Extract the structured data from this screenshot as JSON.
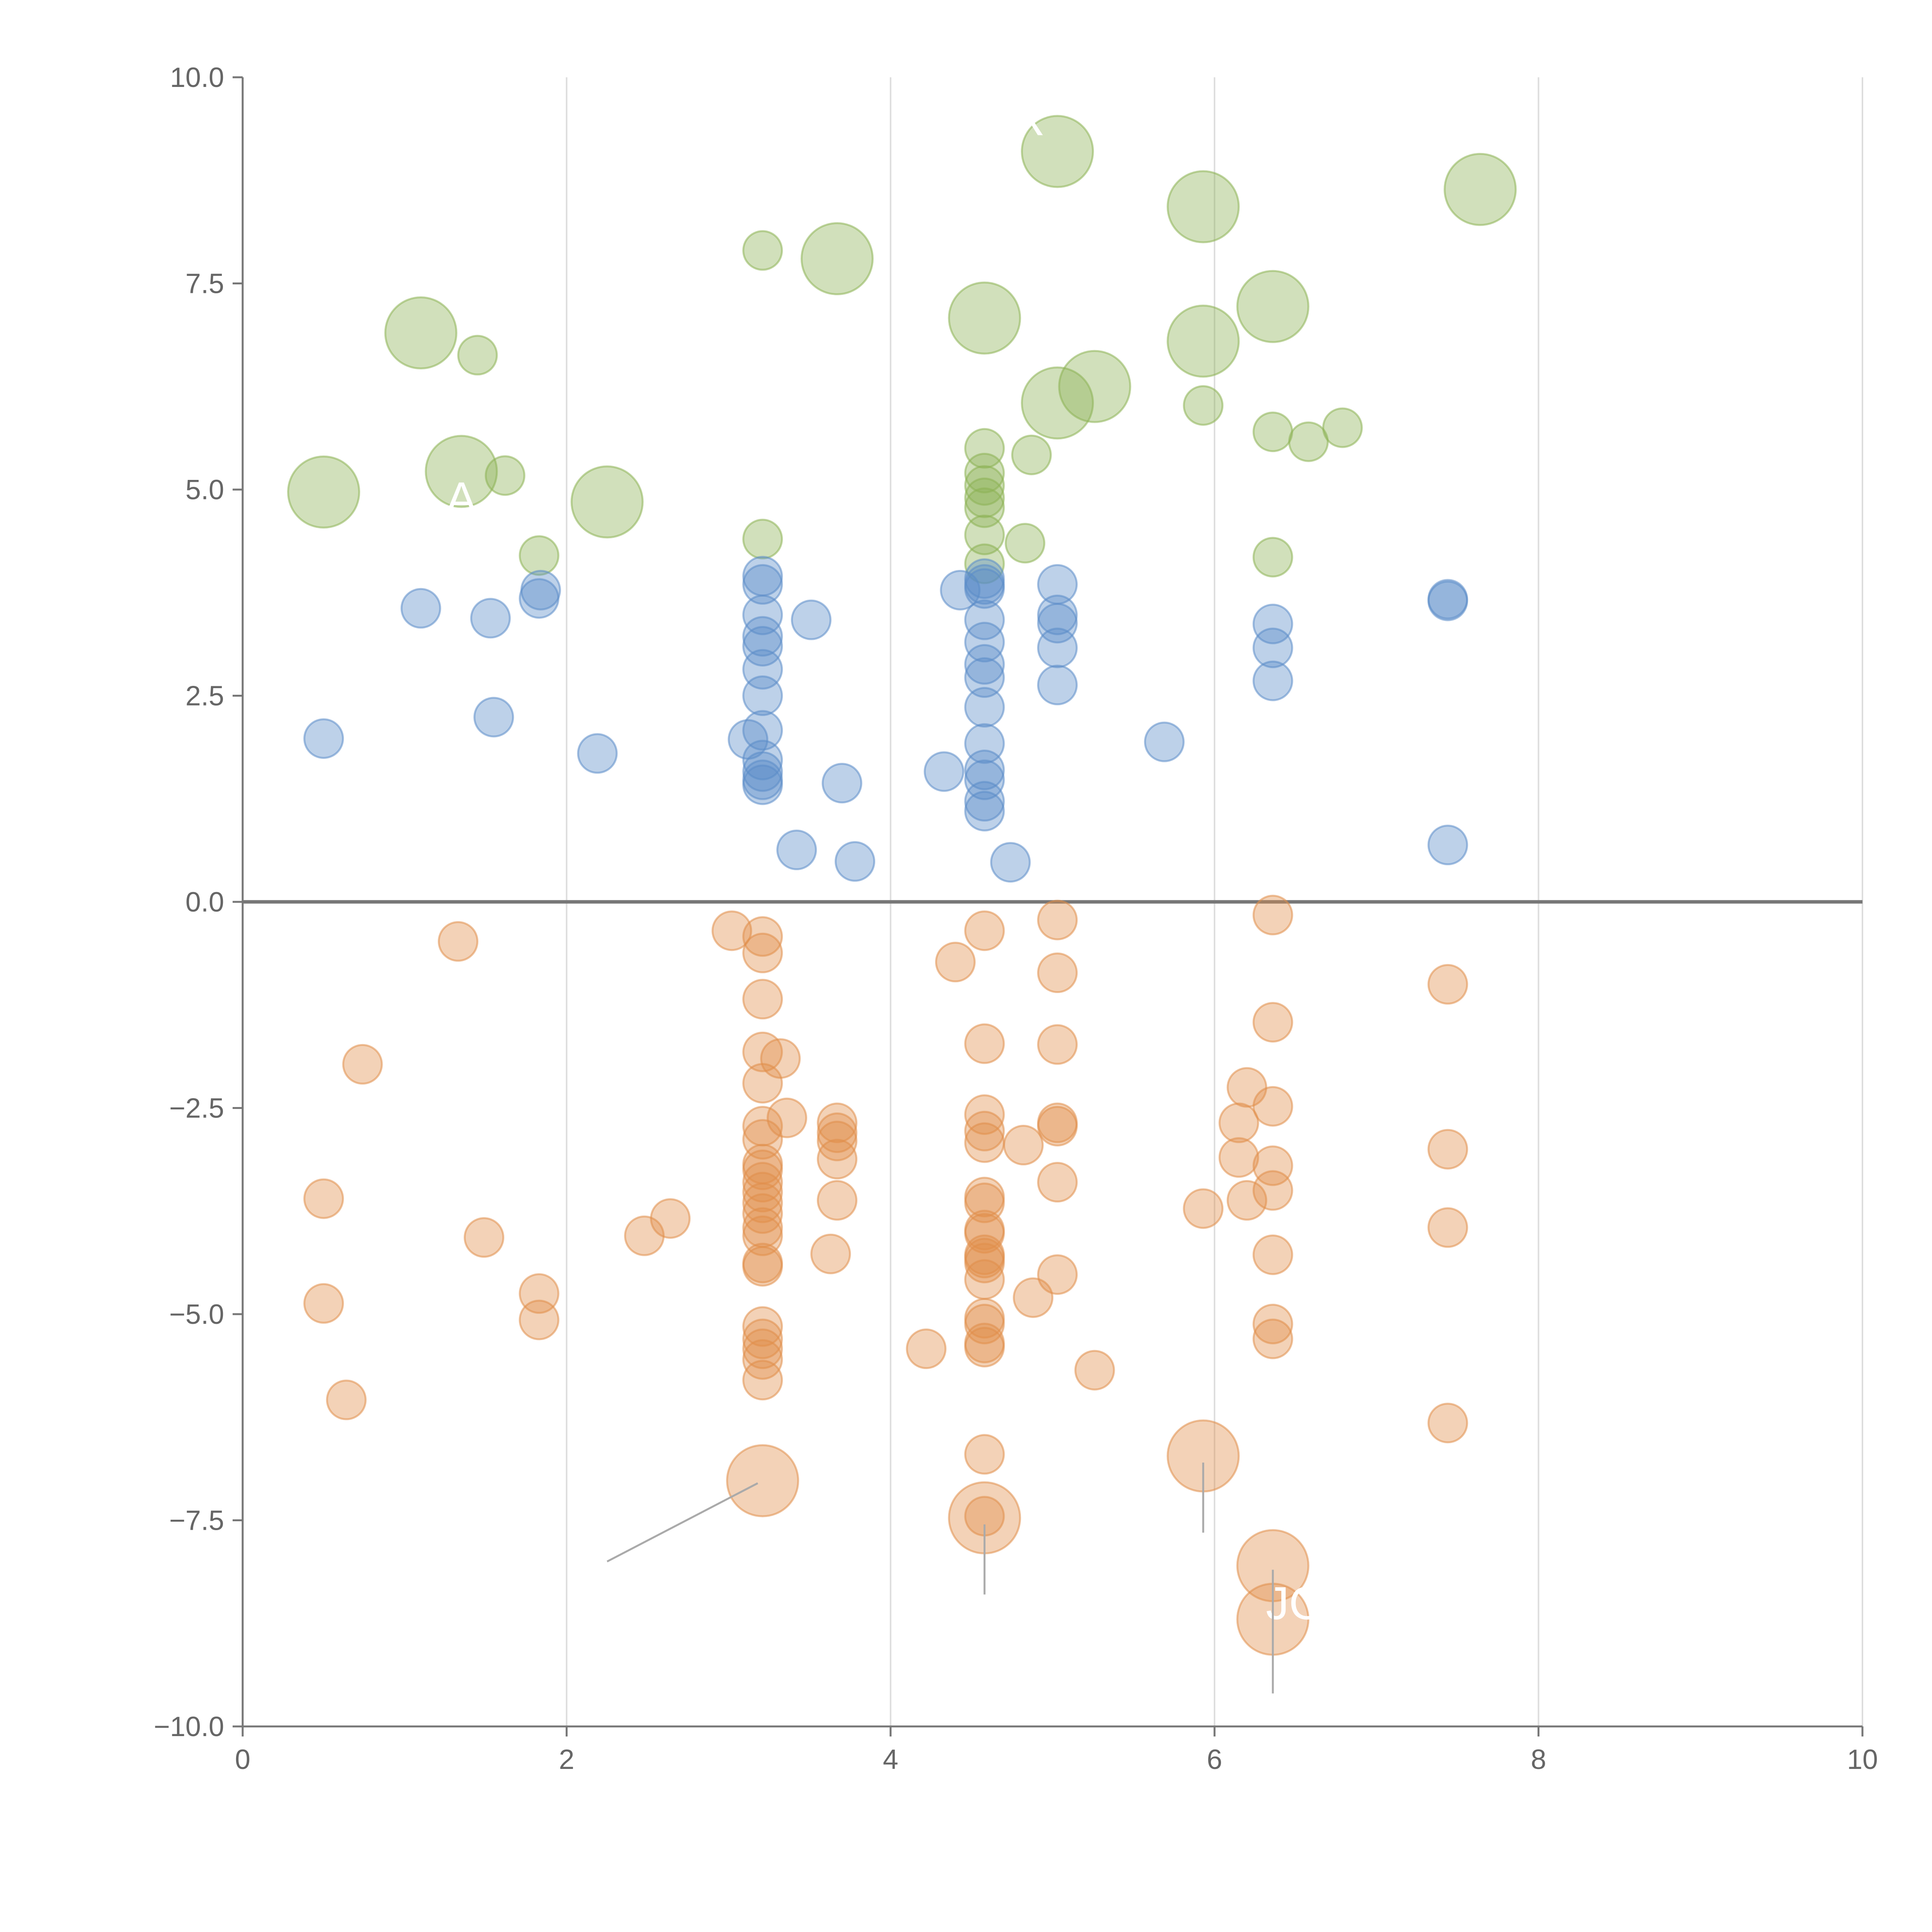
{
  "chart_data": {
    "type": "scatter",
    "title": "",
    "xlabel": "",
    "ylabel": "",
    "xlim": [
      0,
      10
    ],
    "ylim": [
      -10,
      10
    ],
    "grid": true,
    "x_ticks": [
      0,
      2,
      4,
      6,
      8,
      10
    ],
    "x_tick_labels": [
      "0",
      "2",
      "4",
      "6",
      "8",
      "10"
    ],
    "y_ticks": [
      -10,
      -7.5,
      -5,
      -2.5,
      0,
      2.5,
      5,
      7.5,
      10
    ],
    "y_tick_labels": [
      "−10.0",
      "−7.5",
      "−5.0",
      "−2.5",
      "0.0",
      "2.5",
      "5.0",
      "7.5",
      "10.0"
    ],
    "reference_line_y": 0,
    "series": [
      {
        "name": "upper-large (green)",
        "color": "#8db254",
        "points": [
          {
            "x": 0.5,
            "y": 4.97,
            "s": 2
          },
          {
            "x": 1.1,
            "y": 6.9,
            "s": 2
          },
          {
            "x": 1.35,
            "y": 5.22,
            "s": 2
          },
          {
            "x": 1.45,
            "y": 6.63,
            "s": 1
          },
          {
            "x": 1.62,
            "y": 5.17,
            "s": 1
          },
          {
            "x": 1.83,
            "y": 4.2,
            "s": 1
          },
          {
            "x": 2.25,
            "y": 4.85,
            "s": 2
          },
          {
            "x": 3.21,
            "y": 7.9,
            "s": 1
          },
          {
            "x": 3.21,
            "y": 4.4,
            "s": 1
          },
          {
            "x": 3.67,
            "y": 7.8,
            "s": 2
          },
          {
            "x": 4.58,
            "y": 7.08,
            "s": 2
          },
          {
            "x": 4.58,
            "y": 5.5,
            "s": 1
          },
          {
            "x": 4.58,
            "y": 5.2,
            "s": 1
          },
          {
            "x": 4.58,
            "y": 5.05,
            "s": 1
          },
          {
            "x": 4.58,
            "y": 4.9,
            "s": 1
          },
          {
            "x": 4.58,
            "y": 4.78,
            "s": 1
          },
          {
            "x": 4.58,
            "y": 4.45,
            "s": 1
          },
          {
            "x": 4.58,
            "y": 4.1,
            "s": 1
          },
          {
            "x": 4.83,
            "y": 4.35,
            "s": 1
          },
          {
            "x": 4.87,
            "y": 5.42,
            "s": 1
          },
          {
            "x": 5.03,
            "y": 9.1,
            "s": 2
          },
          {
            "x": 5.03,
            "y": 6.05,
            "s": 2
          },
          {
            "x": 5.26,
            "y": 6.25,
            "s": 2
          },
          {
            "x": 5.93,
            "y": 8.43,
            "s": 2
          },
          {
            "x": 5.93,
            "y": 6.8,
            "s": 2
          },
          {
            "x": 5.93,
            "y": 6.02,
            "s": 1
          },
          {
            "x": 6.36,
            "y": 7.22,
            "s": 2
          },
          {
            "x": 6.36,
            "y": 5.7,
            "s": 1
          },
          {
            "x": 6.36,
            "y": 4.18,
            "s": 1
          },
          {
            "x": 6.58,
            "y": 5.58,
            "s": 1
          },
          {
            "x": 6.79,
            "y": 5.75,
            "s": 1
          },
          {
            "x": 7.64,
            "y": 8.64,
            "s": 2
          }
        ]
      },
      {
        "name": "upper-small (blue)",
        "color": "#5b8cc8",
        "points": [
          {
            "x": 0.5,
            "y": 1.98
          },
          {
            "x": 1.1,
            "y": 3.56
          },
          {
            "x": 1.53,
            "y": 3.44
          },
          {
            "x": 1.55,
            "y": 2.24
          },
          {
            "x": 1.83,
            "y": 3.68
          },
          {
            "x": 1.84,
            "y": 3.78
          },
          {
            "x": 2.19,
            "y": 1.8
          },
          {
            "x": 3.12,
            "y": 1.97
          },
          {
            "x": 3.21,
            "y": 3.95
          },
          {
            "x": 3.21,
            "y": 3.85
          },
          {
            "x": 3.21,
            "y": 3.48
          },
          {
            "x": 3.21,
            "y": 3.22
          },
          {
            "x": 3.21,
            "y": 3.1
          },
          {
            "x": 3.21,
            "y": 2.82
          },
          {
            "x": 3.21,
            "y": 2.5
          },
          {
            "x": 3.21,
            "y": 2.08
          },
          {
            "x": 3.21,
            "y": 1.72
          },
          {
            "x": 3.21,
            "y": 1.58
          },
          {
            "x": 3.21,
            "y": 1.48
          },
          {
            "x": 3.21,
            "y": 1.42
          },
          {
            "x": 3.42,
            "y": 0.63
          },
          {
            "x": 3.51,
            "y": 3.42
          },
          {
            "x": 3.7,
            "y": 1.44
          },
          {
            "x": 3.78,
            "y": 0.49
          },
          {
            "x": 4.33,
            "y": 1.58
          },
          {
            "x": 4.43,
            "y": 3.78
          },
          {
            "x": 4.58,
            "y": 3.92
          },
          {
            "x": 4.58,
            "y": 3.85
          },
          {
            "x": 4.58,
            "y": 3.8
          },
          {
            "x": 4.58,
            "y": 3.42
          },
          {
            "x": 4.58,
            "y": 3.15
          },
          {
            "x": 4.58,
            "y": 2.88
          },
          {
            "x": 4.58,
            "y": 2.72
          },
          {
            "x": 4.58,
            "y": 2.36
          },
          {
            "x": 4.58,
            "y": 1.92
          },
          {
            "x": 4.58,
            "y": 1.6
          },
          {
            "x": 4.58,
            "y": 1.48
          },
          {
            "x": 4.58,
            "y": 1.22
          },
          {
            "x": 4.58,
            "y": 1.1
          },
          {
            "x": 4.74,
            "y": 0.48
          },
          {
            "x": 5.03,
            "y": 3.85
          },
          {
            "x": 5.03,
            "y": 3.48
          },
          {
            "x": 5.03,
            "y": 3.38
          },
          {
            "x": 5.03,
            "y": 3.08
          },
          {
            "x": 5.03,
            "y": 2.63
          },
          {
            "x": 5.69,
            "y": 1.94
          },
          {
            "x": 6.36,
            "y": 3.37
          },
          {
            "x": 6.36,
            "y": 3.08
          },
          {
            "x": 6.36,
            "y": 2.68
          },
          {
            "x": 7.44,
            "y": 3.67
          },
          {
            "x": 7.44,
            "y": 3.65
          },
          {
            "x": 7.44,
            "y": 0.69
          }
        ]
      },
      {
        "name": "lower (orange)",
        "color": "#e08e4a",
        "points": [
          {
            "x": 0.5,
            "y": -3.6,
            "s": 1
          },
          {
            "x": 0.5,
            "y": -4.87,
            "s": 1
          },
          {
            "x": 0.64,
            "y": -6.04,
            "s": 1
          },
          {
            "x": 0.74,
            "y": -1.97,
            "s": 1
          },
          {
            "x": 1.33,
            "y": -0.48,
            "s": 1
          },
          {
            "x": 1.49,
            "y": -4.07,
            "s": 1
          },
          {
            "x": 1.83,
            "y": -4.75,
            "s": 1
          },
          {
            "x": 1.83,
            "y": -5.07,
            "s": 1
          },
          {
            "x": 2.48,
            "y": -4.05,
            "s": 1
          },
          {
            "x": 2.64,
            "y": -3.84,
            "s": 1
          },
          {
            "x": 3.02,
            "y": -0.35,
            "s": 1
          },
          {
            "x": 3.21,
            "y": -0.42,
            "s": 1
          },
          {
            "x": 3.21,
            "y": -0.62,
            "s": 1
          },
          {
            "x": 3.21,
            "y": -1.18,
            "s": 1
          },
          {
            "x": 3.21,
            "y": -1.82,
            "s": 1
          },
          {
            "x": 3.21,
            "y": -2.2,
            "s": 1
          },
          {
            "x": 3.21,
            "y": -2.72,
            "s": 1
          },
          {
            "x": 3.21,
            "y": -2.88,
            "s": 1
          },
          {
            "x": 3.21,
            "y": -3.18,
            "s": 1
          },
          {
            "x": 3.21,
            "y": -3.25,
            "s": 1
          },
          {
            "x": 3.21,
            "y": -3.4,
            "s": 1
          },
          {
            "x": 3.21,
            "y": -3.52,
            "s": 1
          },
          {
            "x": 3.21,
            "y": -3.65,
            "s": 1
          },
          {
            "x": 3.21,
            "y": -3.78,
            "s": 1
          },
          {
            "x": 3.21,
            "y": -3.95,
            "s": 1
          },
          {
            "x": 3.21,
            "y": -4.05,
            "s": 1
          },
          {
            "x": 3.21,
            "y": -4.38,
            "s": 1
          },
          {
            "x": 3.21,
            "y": -4.42,
            "s": 1
          },
          {
            "x": 3.21,
            "y": -5.15,
            "s": 1
          },
          {
            "x": 3.21,
            "y": -5.3,
            "s": 1
          },
          {
            "x": 3.21,
            "y": -5.42,
            "s": 1
          },
          {
            "x": 3.21,
            "y": -5.55,
            "s": 1
          },
          {
            "x": 3.21,
            "y": -5.8,
            "s": 1
          },
          {
            "x": 3.21,
            "y": -7.02,
            "s": 2
          },
          {
            "x": 3.32,
            "y": -1.9,
            "s": 1
          },
          {
            "x": 3.36,
            "y": -2.62,
            "s": 1
          },
          {
            "x": 3.63,
            "y": -4.27,
            "s": 1
          },
          {
            "x": 3.67,
            "y": -2.68,
            "s": 1
          },
          {
            "x": 3.67,
            "y": -2.8,
            "s": 1
          },
          {
            "x": 3.67,
            "y": -2.9,
            "s": 1
          },
          {
            "x": 3.67,
            "y": -3.12,
            "s": 1
          },
          {
            "x": 3.67,
            "y": -3.62,
            "s": 1
          },
          {
            "x": 4.22,
            "y": -5.42,
            "s": 1
          },
          {
            "x": 4.4,
            "y": -0.73,
            "s": 1
          },
          {
            "x": 4.58,
            "y": -0.35,
            "s": 1
          },
          {
            "x": 4.58,
            "y": -1.72,
            "s": 1
          },
          {
            "x": 4.58,
            "y": -2.58,
            "s": 1
          },
          {
            "x": 4.58,
            "y": -2.78,
            "s": 1
          },
          {
            "x": 4.58,
            "y": -2.92,
            "s": 1
          },
          {
            "x": 4.58,
            "y": -3.58,
            "s": 1
          },
          {
            "x": 4.58,
            "y": -3.65,
            "s": 1
          },
          {
            "x": 4.58,
            "y": -3.98,
            "s": 1
          },
          {
            "x": 4.58,
            "y": -4.02,
            "s": 1
          },
          {
            "x": 4.58,
            "y": -4.28,
            "s": 1
          },
          {
            "x": 4.58,
            "y": -4.32,
            "s": 1
          },
          {
            "x": 4.58,
            "y": -4.38,
            "s": 1
          },
          {
            "x": 4.58,
            "y": -4.58,
            "s": 1
          },
          {
            "x": 4.58,
            "y": -5.05,
            "s": 1
          },
          {
            "x": 4.58,
            "y": -5.12,
            "s": 1
          },
          {
            "x": 4.58,
            "y": -5.35,
            "s": 1
          },
          {
            "x": 4.58,
            "y": -5.4,
            "s": 1
          },
          {
            "x": 4.58,
            "y": -6.7,
            "s": 1
          },
          {
            "x": 4.58,
            "y": -7.47,
            "s": 2
          },
          {
            "x": 4.58,
            "y": -7.45,
            "s": 1
          },
          {
            "x": 4.82,
            "y": -2.95,
            "s": 1
          },
          {
            "x": 4.88,
            "y": -4.8,
            "s": 1
          },
          {
            "x": 5.03,
            "y": -0.22,
            "s": 1
          },
          {
            "x": 5.03,
            "y": -0.86,
            "s": 1
          },
          {
            "x": 5.03,
            "y": -1.73,
            "s": 1
          },
          {
            "x": 5.03,
            "y": -2.68,
            "s": 1
          },
          {
            "x": 5.03,
            "y": -2.72,
            "s": 1
          },
          {
            "x": 5.03,
            "y": -3.4,
            "s": 1
          },
          {
            "x": 5.03,
            "y": -4.52,
            "s": 1
          },
          {
            "x": 5.26,
            "y": -5.68,
            "s": 1
          },
          {
            "x": 5.93,
            "y": -3.72,
            "s": 1
          },
          {
            "x": 5.93,
            "y": -6.72,
            "s": 2
          },
          {
            "x": 6.15,
            "y": -2.68,
            "s": 1
          },
          {
            "x": 6.15,
            "y": -3.1,
            "s": 1
          },
          {
            "x": 6.2,
            "y": -2.25,
            "s": 1
          },
          {
            "x": 6.2,
            "y": -3.62,
            "s": 1
          },
          {
            "x": 6.36,
            "y": -0.16,
            "s": 1
          },
          {
            "x": 6.36,
            "y": -1.46,
            "s": 1
          },
          {
            "x": 6.36,
            "y": -2.48,
            "s": 1
          },
          {
            "x": 6.36,
            "y": -3.2,
            "s": 1
          },
          {
            "x": 6.36,
            "y": -3.5,
            "s": 1
          },
          {
            "x": 6.36,
            "y": -4.28,
            "s": 1
          },
          {
            "x": 6.36,
            "y": -5.12,
            "s": 1
          },
          {
            "x": 6.36,
            "y": -5.3,
            "s": 1
          },
          {
            "x": 6.36,
            "y": -8.05,
            "s": 2
          },
          {
            "x": 6.36,
            "y": -8.7,
            "s": 2
          },
          {
            "x": 7.44,
            "y": -1.0,
            "s": 1
          },
          {
            "x": 7.44,
            "y": -3.0,
            "s": 1
          },
          {
            "x": 7.44,
            "y": -3.95,
            "s": 1
          },
          {
            "x": 7.44,
            "y": -6.32,
            "s": 1
          }
        ]
      }
    ],
    "annotations": [
      {
        "text": "R",
        "x": 4.85,
        "y": 9.3,
        "ax": 4.85,
        "ay": 9.3,
        "lx": 4.85,
        "ly": 9.3
      },
      {
        "text": "A",
        "x": 1.35,
        "y": 4.7,
        "ax": 1.35,
        "ay": 4.7,
        "lx": 1.35,
        "ly": 4.7
      },
      {
        "text": "JO",
        "x": 6.5,
        "y": -8.7,
        "ax": 6.5,
        "ay": -8.7,
        "lx": 6.5,
        "ly": -8.7
      },
      {
        "text": "",
        "x": 2.25,
        "y": -8.0,
        "ax": 3.18,
        "ay": -7.05,
        "lx": 2.25,
        "ly": -8.0
      },
      {
        "text": "",
        "x": 4.58,
        "y": -8.4,
        "ax": 4.58,
        "ay": -7.55,
        "lx": 4.58,
        "ly": -8.4
      },
      {
        "text": "",
        "x": 5.93,
        "y": -7.65,
        "ax": 5.93,
        "ay": -6.8,
        "lx": 5.93,
        "ly": -7.65
      },
      {
        "text": "",
        "x": 6.36,
        "y": -9.6,
        "ax": 6.36,
        "ay": -8.1,
        "lx": 6.36,
        "ly": -9.6
      }
    ]
  }
}
